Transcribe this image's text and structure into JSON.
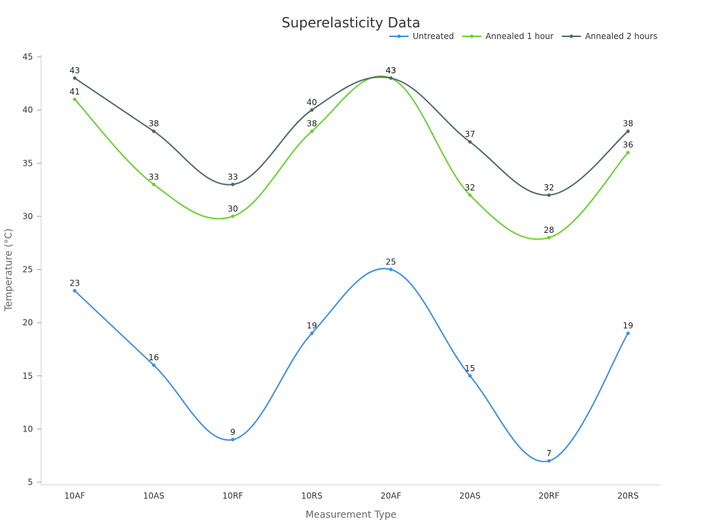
{
  "chart_data": {
    "type": "line",
    "title": "Superelasticity Data",
    "xlabel": "Measurement Type",
    "ylabel": "Temperature (°C)",
    "categories": [
      "10AF",
      "10AS",
      "10RF",
      "10RS",
      "20AF",
      "20AS",
      "20RF",
      "20RS"
    ],
    "ylim": [
      5,
      45
    ],
    "yticks": [
      5,
      10,
      15,
      20,
      25,
      30,
      35,
      40,
      45
    ],
    "grid": false,
    "legend_position": "top-right",
    "smooth": true,
    "series": [
      {
        "name": "Untreated",
        "color": "#3a8ee6",
        "values": [
          23,
          16,
          9,
          19,
          25,
          15,
          7,
          19
        ]
      },
      {
        "name": "Annealed 1 hour",
        "color": "#67d12b",
        "values": [
          41,
          33,
          30,
          38,
          43,
          32,
          28,
          36
        ]
      },
      {
        "name": "Annealed 2 hours",
        "color": "#4d6670",
        "values": [
          43,
          38,
          33,
          40,
          43,
          37,
          32,
          38
        ]
      }
    ]
  }
}
